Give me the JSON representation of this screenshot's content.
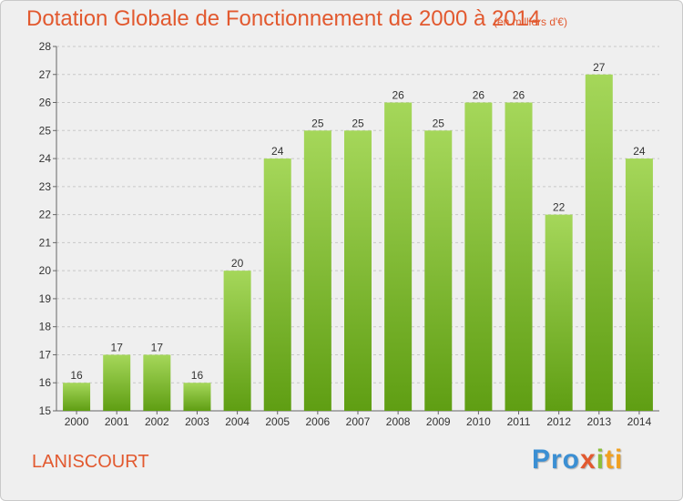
{
  "header": {
    "title": "Dotation Globale de Fonctionnement de 2000 à 2014",
    "subtitle": "(en milliers d'€)"
  },
  "footer": {
    "commune": "LANISCOURT",
    "brand": [
      "Pro",
      "x",
      "i",
      "ti"
    ]
  },
  "colors": {
    "title": "#e2592f",
    "bar_light": "#a5d75a",
    "bar_dark": "#5f9e13",
    "background": "#efefef",
    "grid": "#c8c8c8"
  },
  "chart_data": {
    "type": "bar",
    "title": "Dotation Globale de Fonctionnement de 2000 à 2014",
    "subtitle": "(en milliers d'€)",
    "xlabel": "",
    "ylabel": "",
    "categories": [
      "2000",
      "2001",
      "2002",
      "2003",
      "2004",
      "2005",
      "2006",
      "2007",
      "2008",
      "2009",
      "2010",
      "2011",
      "2012",
      "2013",
      "2014"
    ],
    "values": [
      16,
      17,
      17,
      16,
      20,
      24,
      25,
      25,
      26,
      25,
      26,
      26,
      22,
      27,
      24
    ],
    "ylim": [
      15,
      28
    ],
    "yticks": [
      15,
      16,
      17,
      18,
      19,
      20,
      21,
      22,
      23,
      24,
      25,
      26,
      27,
      28
    ],
    "grid": true,
    "grid_style": "dashed horizontal",
    "legend": "none"
  }
}
